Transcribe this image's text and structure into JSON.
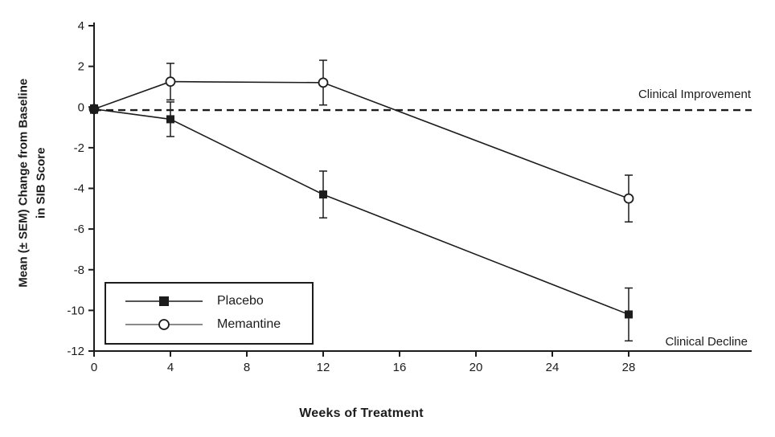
{
  "figure": {
    "background": "#ffffff",
    "ink_color": "#1c1c1c"
  },
  "chart_data": {
    "type": "line",
    "title": "",
    "xlabel": "Weeks of Treatment",
    "ylabel": "Mean (± SEM) Change from Baseline\nin SIB Score",
    "x": [
      0,
      4,
      12,
      28
    ],
    "series": [
      {
        "name": "Placebo",
        "marker": "filled-square",
        "values": [
          -0.1,
          -0.6,
          -4.3,
          -10.2
        ],
        "sem": [
          0.2,
          0.85,
          1.15,
          1.3
        ]
      },
      {
        "name": "Memantine",
        "marker": "open-circle",
        "values": [
          -0.1,
          1.25,
          1.2,
          -4.5
        ],
        "sem": [
          0.2,
          0.9,
          1.1,
          1.15
        ]
      }
    ],
    "xticks": [
      0,
      4,
      8,
      12,
      16,
      20,
      24,
      28
    ],
    "yticks": [
      4,
      2,
      0,
      -2,
      -4,
      -6,
      -8,
      -10,
      -12
    ],
    "xlim": [
      0,
      28
    ],
    "ylim": [
      -12,
      4
    ],
    "grid": false,
    "legend": {
      "position": "lower-left",
      "entries": [
        "Placebo",
        "Memantine"
      ]
    },
    "reference_line": {
      "y": -0.15,
      "style": "dashed"
    },
    "annotations": {
      "improvement": "Clinical Improvement",
      "decline": "Clinical Decline"
    }
  }
}
